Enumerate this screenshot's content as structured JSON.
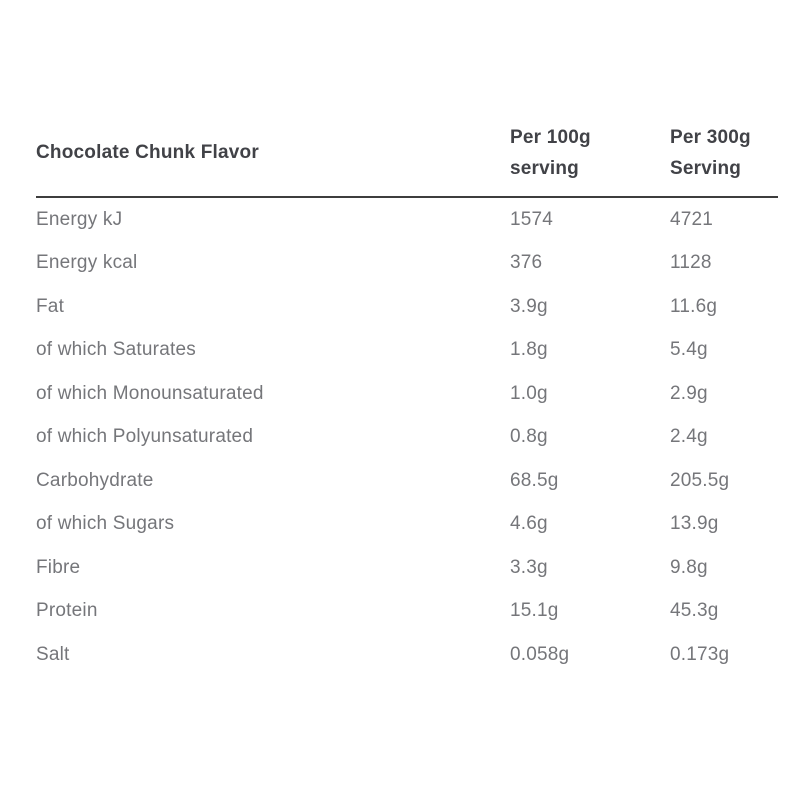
{
  "page": {
    "background": "#ffffff"
  },
  "table": {
    "title": "Chocolate Chunk Flavor",
    "columns": [
      {
        "line1": "Per 100g",
        "line2": "serving"
      },
      {
        "line1": "Per 300g",
        "line2": "Serving"
      }
    ],
    "rows": [
      {
        "label": "Energy kJ",
        "per100g": "1574",
        "per300g": "4721"
      },
      {
        "label": "Energy kcal",
        "per100g": "376",
        "per300g": "1128"
      },
      {
        "label": "Fat",
        "per100g": "3.9g",
        "per300g": "11.6g"
      },
      {
        "label": "of which Saturates",
        "per100g": "1.8g",
        "per300g": "5.4g"
      },
      {
        "label": "of which Monounsaturated",
        "per100g": "1.0g",
        "per300g": "2.9g"
      },
      {
        "label": "of which Polyunsaturated",
        "per100g": "0.8g",
        "per300g": "2.4g"
      },
      {
        "label": "Carbohydrate",
        "per100g": "68.5g",
        "per300g": "205.5g"
      },
      {
        "label": "of which Sugars",
        "per100g": "4.6g",
        "per300g": "13.9g"
      },
      {
        "label": "Fibre",
        "per100g": "3.3g",
        "per300g": "9.8g"
      },
      {
        "label": "Protein",
        "per100g": "15.1g",
        "per300g": "45.3g"
      },
      {
        "label": "Salt",
        "per100g": "0.058g",
        "per300g": "0.173g"
      }
    ],
    "colors": {
      "header_text": "#414247",
      "body_text": "#75767a",
      "divider": "#3d3d3d"
    }
  }
}
